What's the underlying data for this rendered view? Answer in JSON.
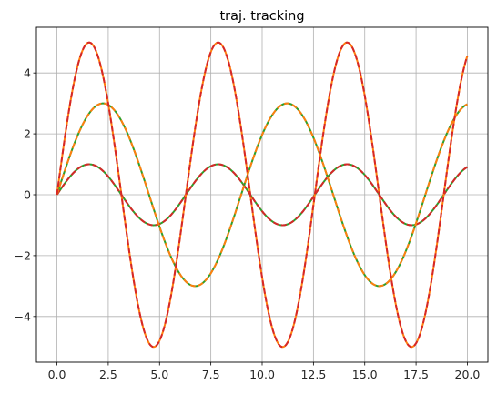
{
  "chart_data": {
    "type": "line",
    "title": "traj. tracking",
    "xlabel": "",
    "ylabel": "",
    "xlim": [
      -1.0,
      21.0
    ],
    "ylim": [
      -5.5,
      5.5
    ],
    "xticks": [
      0.0,
      2.5,
      5.0,
      7.5,
      10.0,
      12.5,
      15.0,
      17.5,
      20.0
    ],
    "xtick_labels": [
      "0.0",
      "2.5",
      "5.0",
      "7.5",
      "10.0",
      "12.5",
      "15.0",
      "17.5",
      "20.0"
    ],
    "yticks": [
      -4,
      -2,
      0,
      2,
      4
    ],
    "ytick_labels": [
      "−4",
      "−2",
      "0",
      "2",
      "4"
    ],
    "grid": true,
    "x_range": [
      0,
      20
    ],
    "series": [
      {
        "function": "1*sin(1.0*t)",
        "amplitude": 1,
        "frequency": 1.0,
        "style": "solid",
        "color": "#2ca02c"
      },
      {
        "function": "1*sin(1.0*t)",
        "amplitude": 1,
        "frequency": 1.0,
        "style": "dashed",
        "color": "#d62728"
      },
      {
        "function": "3*sin(0.7*t)",
        "amplitude": 3,
        "frequency": 0.7,
        "style": "solid",
        "color": "#2ca02c"
      },
      {
        "function": "3*sin(0.7*t)",
        "amplitude": 3,
        "frequency": 0.7,
        "style": "dashed",
        "color": "#ff7f0e"
      },
      {
        "function": "5*sin(1.0*t)",
        "amplitude": 5,
        "frequency": 1.0,
        "style": "solid",
        "color": "#ff7f0e"
      },
      {
        "function": "5*sin(1.0*t)",
        "amplitude": 5,
        "frequency": 1.0,
        "style": "dashed",
        "color": "#d62728"
      }
    ]
  }
}
